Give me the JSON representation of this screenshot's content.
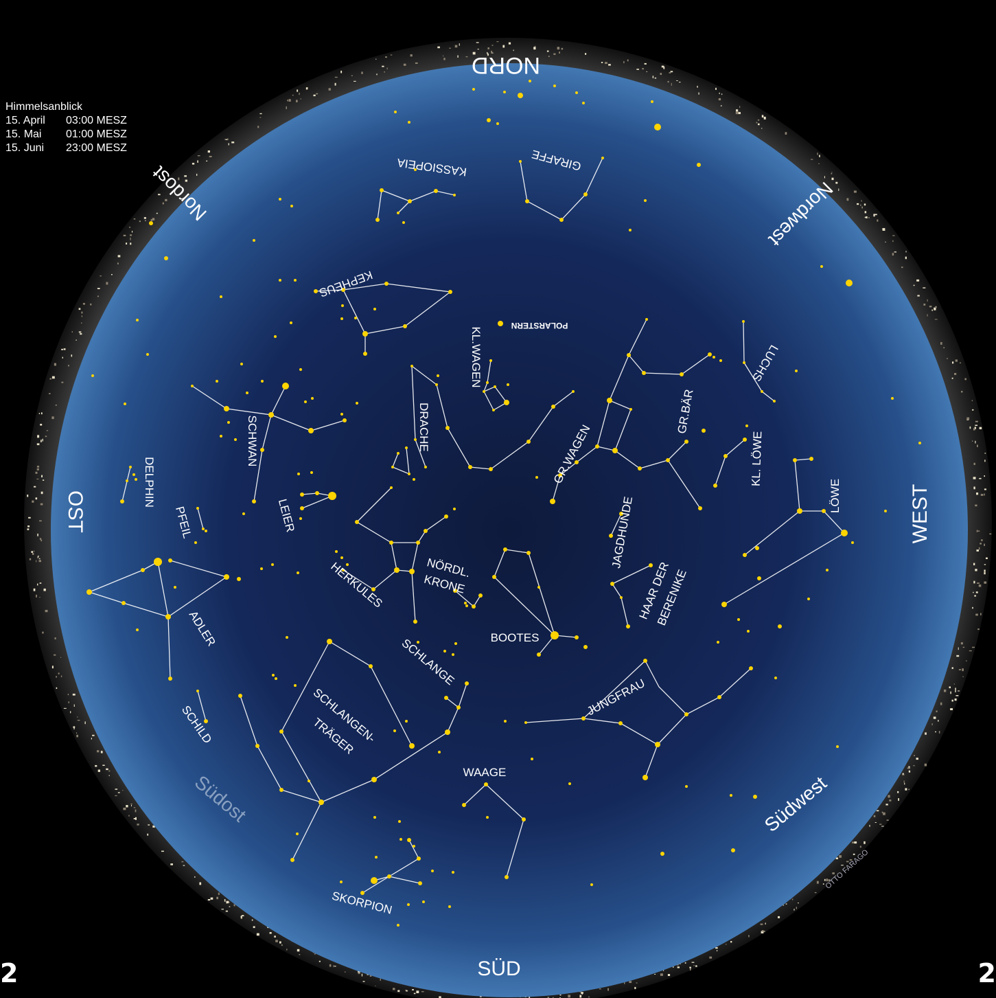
{
  "legend": {
    "title": "Himmelsanblick",
    "rows": [
      {
        "date": "15. April",
        "time": "03:00 MESZ"
      },
      {
        "date": "15. Mai",
        "time": "01:00 MESZ"
      },
      {
        "date": "15. Juni",
        "time": "23:00 MESZ"
      }
    ]
  },
  "directions": {
    "north": "NORD",
    "south": "SÜD",
    "east": "OST",
    "west": "WEST",
    "northeast": "Nordost",
    "northwest": "Nordwest",
    "southeast": "Südost",
    "southwest": "Südwest"
  },
  "constellations": {
    "kassiopeia": "KASSIOPEIA",
    "giraffe": "GIRAFFE",
    "kepheus": "KEPHEUS",
    "polarstern": "POLARSTERN",
    "kl_wagen": "KL.WAGEN",
    "luchs": "LUCHS",
    "gr_baer": "GR.BÄR",
    "drache": "DRACHE",
    "schwan": "SCHWAN",
    "gr_wagen": "GR.WAGEN",
    "kl_loewe": "KL. LÖWE",
    "loewe": "LÖWE",
    "delphin": "DELPHIN",
    "leier": "LEIER",
    "pfeil": "PFEIL",
    "jagdhunde": "JAGDHUNDE",
    "noerdl_krone_1": "NÖRDL.",
    "noerdl_krone_2": "KRONE",
    "herkules": "HERKULES",
    "haar_1": "HAAR DER",
    "haar_2": "BERENIKE",
    "adler": "ADLER",
    "bootes": "BOOTES",
    "schlange": "SCHLANGE",
    "schlangentraeger_1": "SCHLANGEN-",
    "schlangentraeger_2": "TRÄGER",
    "jungfrau": "JUNGFRAU",
    "schild": "SCHILD",
    "waage": "WAAGE",
    "skorpion": "SKORPION"
  },
  "credit": "OTTO FARAGO",
  "page_numbers": {
    "left": "2",
    "right": "2"
  },
  "colors": {
    "sky_center": "#0e1a3c",
    "sky_edge": "#3a6da6",
    "star": "#ffd400",
    "line": "#ffffff",
    "text": "#ffffff"
  }
}
